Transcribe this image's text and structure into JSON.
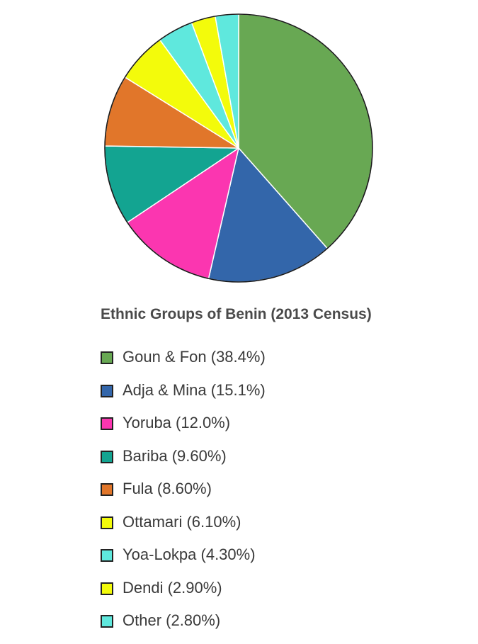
{
  "chart_data": {
    "type": "pie",
    "title": "Ethnic Groups of Benin (2013 Census)",
    "legend_position": "bottom",
    "slices": [
      {
        "label": "Goun & Fon (38.4%)",
        "value": 38.4,
        "color": "#68a853"
      },
      {
        "label": "Adja & Mina (15.1%)",
        "value": 15.1,
        "color": "#3366aa"
      },
      {
        "label": "Yoruba (12.0%)",
        "value": 12.0,
        "color": "#fb36b0"
      },
      {
        "label": "Bariba (9.60%)",
        "value": 9.6,
        "color": "#13a491"
      },
      {
        "label": "Fula (8.60%)",
        "value": 8.6,
        "color": "#e1762a"
      },
      {
        "label": "Ottamari (6.10%)",
        "value": 6.1,
        "color": "#f3fb0b"
      },
      {
        "label": "Yoa-Lokpa (4.30%)",
        "value": 4.3,
        "color": "#5fe8dd"
      },
      {
        "label": "Dendi (2.90%)",
        "value": 2.9,
        "color": "#f3fb0b"
      },
      {
        "label": "Other (2.80%)",
        "value": 2.8,
        "color": "#5fe8dd"
      }
    ]
  }
}
